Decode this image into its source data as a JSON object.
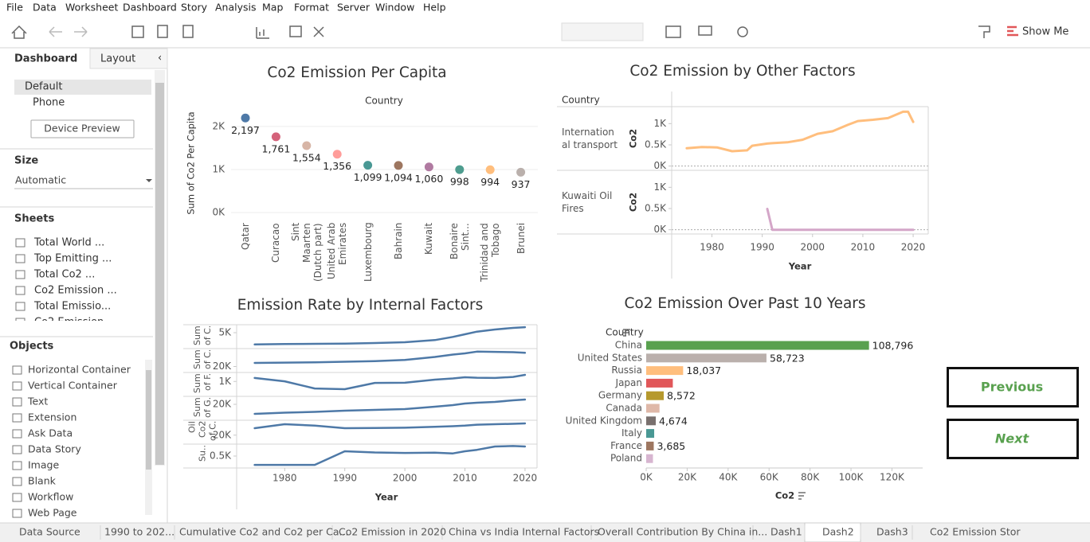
{
  "menu": [
    "File",
    "Data",
    "Worksheet",
    "Dashboard",
    "Story",
    "Analysis",
    "Map",
    "Format",
    "Server",
    "Window",
    "Help"
  ],
  "toolbar": {
    "show_me": "Show Me"
  },
  "sidebar": {
    "tabs": [
      "Dashboard",
      "Layout"
    ],
    "devices": [
      "Default",
      "Phone"
    ],
    "device_preview": "Device Preview",
    "size_title": "Size",
    "size_value": "Automatic",
    "sheets_title": "Sheets",
    "sheets": [
      "Total World ...",
      "Top Emitting ...",
      "Total Co2 ...",
      "Co2 Emission ...",
      "Total Emissio...",
      "Co2 Emission"
    ],
    "objects_title": "Objects",
    "objects": [
      "Horizontal Container",
      "Vertical Container",
      "Text",
      "Extension",
      "Ask Data",
      "Data Story",
      "Image",
      "Blank",
      "Workflow",
      "Web Page"
    ]
  },
  "chart_data": [
    {
      "type": "dot",
      "title": "Co2 Emission Per Capita",
      "header": "Country",
      "y_label": "Sum of Co2 Per Capita",
      "categories": [
        "Qatar",
        "Curacao",
        "Sint Maarten (Dutch part)",
        "United Arab Emirates",
        "Luxembourg",
        "Bahrain",
        "Kuwait",
        "Bonaire Sint...",
        "Trinidad and Tobago",
        "Brunei"
      ],
      "values": [
        2197,
        1761,
        1554,
        1356,
        1099,
        1094,
        1060,
        998,
        994,
        937
      ],
      "value_labels": [
        "2,197",
        "1,761",
        "1,554",
        "1,356",
        "1,099",
        "1,094",
        "1,060",
        "998",
        "994",
        "937"
      ],
      "colors": [
        "#4e79a7",
        "#d4627a",
        "#d7b5a6",
        "#ff9d9a",
        "#499894",
        "#9d7660",
        "#b07aa1",
        "#4e9d8f",
        "#ffbe7d",
        "#bab0ac"
      ],
      "ylim": [
        0,
        2350
      ],
      "yticks": [
        {
          "value": 0,
          "label": "0K"
        },
        {
          "value": 1000,
          "label": "1K"
        },
        {
          "value": 2000,
          "label": "2K"
        }
      ],
      "grid": true
    },
    {
      "type": "line",
      "title": "Co2 Emission by Other Factors",
      "row_header": "Country",
      "y_label": "Co2",
      "x_label": "Year",
      "x": [
        1975,
        1978,
        1981,
        1984,
        1987,
        1988,
        1991,
        1992,
        1995,
        1998,
        2001,
        2004,
        2007,
        2009,
        2012,
        2015,
        2018,
        2019,
        2020
      ],
      "xlim": [
        1972,
        2023
      ],
      "xticks": [
        1980,
        1990,
        2000,
        2010,
        2020
      ],
      "ylim": [
        -100,
        1400
      ],
      "yticks": [
        {
          "value": 0,
          "label": "0K"
        },
        {
          "value": 500,
          "label": "0.5K"
        },
        {
          "value": 1000,
          "label": "1K"
        }
      ],
      "series": [
        {
          "name": "International transport",
          "color": "#ffbe7d",
          "values": [
            420,
            450,
            440,
            350,
            370,
            480,
            530,
            540,
            560,
            620,
            760,
            820,
            970,
            1060,
            1090,
            1130,
            1280,
            1280,
            1040
          ]
        },
        {
          "name": "Kuwaiti Oil Fires",
          "color": "#d4a6c8",
          "values": [
            null,
            null,
            null,
            null,
            null,
            null,
            490,
            0,
            0,
            0,
            0,
            0,
            0,
            0,
            0,
            0,
            0,
            0,
            0
          ]
        }
      ]
    },
    {
      "type": "line",
      "title": "Emission Rate by Internal Factors",
      "x_label": "Year",
      "x": [
        1975,
        1980,
        1985,
        1990,
        1995,
        2000,
        2005,
        2008,
        2010,
        2012,
        2015,
        2018,
        2020
      ],
      "xlim": [
        1972,
        2022
      ],
      "xticks": [
        1980,
        1990,
        2000,
        2010,
        2020
      ],
      "series": [
        {
          "name": "Sum of C.",
          "color": "#4e79a7",
          "ylim": [
            2000,
            6500
          ],
          "yticks": [
            {
              "value": 5000,
              "label": "5K"
            }
          ],
          "values": [
            2780,
            2850,
            2900,
            2950,
            3050,
            3200,
            3600,
            4200,
            4700,
            5200,
            5600,
            5900,
            6030
          ]
        },
        {
          "name": "Sum of C.",
          "color": "#4e79a7",
          "ylim": [
            15000,
            35000
          ],
          "yticks": [
            {
              "value": 20000,
              "label": "20K"
            }
          ],
          "values": [
            23000,
            23300,
            23500,
            24000,
            24500,
            25500,
            28000,
            30000,
            31000,
            32500,
            32300,
            32000,
            31500
          ]
        },
        {
          "name": "Sum of F.",
          "color": "#4e79a7",
          "ylim": [
            0,
            1600
          ],
          "yticks": [
            {
              "value": 1000,
              "label": "1K"
            }
          ],
          "values": [
            1230,
            1010,
            530,
            480,
            900,
            910,
            1120,
            1200,
            1280,
            1250,
            1230,
            1300,
            1440
          ]
        },
        {
          "name": "Sum of G.",
          "color": "#4e79a7",
          "ylim": [
            0,
            30000
          ],
          "yticks": [
            {
              "value": 20000,
              "label": "20K"
            }
          ],
          "values": [
            8000,
            9500,
            10500,
            12000,
            13000,
            14000,
            17000,
            19000,
            21000,
            22000,
            23000,
            25000,
            26000
          ]
        },
        {
          "name": "Oil Co2 of C.",
          "color": "#4e79a7",
          "ylim": [
            5000,
            45000
          ],
          "yticks": [
            {
              "value": 20000,
              "label": "20K"
            }
          ],
          "values": [
            31700,
            38300,
            36000,
            31700,
            32000,
            32500,
            34000,
            35000,
            36000,
            37500,
            38300,
            39000,
            39700
          ]
        },
        {
          "name": "Su..",
          "color": "#4e79a7",
          "ylim": [
            0,
            1000
          ],
          "yticks": [
            {
              "value": 500,
              "label": "0.5K"
            }
          ],
          "values": [
            130,
            130,
            130,
            700,
            650,
            630,
            640,
            610,
            700,
            760,
            900,
            920,
            900
          ]
        }
      ]
    },
    {
      "type": "bar",
      "title": "Co2 Emission Over Past 10 Years",
      "header": "Country",
      "x_label": "Co2",
      "categories": [
        "China",
        "United States",
        "Russia",
        "Japan",
        "Germany",
        "Canada",
        "United Kingdom",
        "Italy",
        "France",
        "Poland"
      ],
      "values": [
        108796,
        58723,
        18037,
        13000,
        8572,
        6500,
        4674,
        3900,
        3685,
        3300
      ],
      "value_labels": [
        "108,796",
        "58,723",
        "18,037",
        null,
        "8,572",
        null,
        "4,674",
        null,
        "3,685",
        null
      ],
      "colors": [
        "#59a14f",
        "#bab0ac",
        "#ffbe7d",
        "#e15759",
        "#b6992d",
        "#dfb8a8",
        "#79706e",
        "#499894",
        "#9d7660",
        "#d7b5d0"
      ],
      "xlim": [
        0,
        135000
      ],
      "xticks": [
        {
          "value": 0,
          "label": "0K"
        },
        {
          "value": 20000,
          "label": "20K"
        },
        {
          "value": 40000,
          "label": "40K"
        },
        {
          "value": 60000,
          "label": "60K"
        },
        {
          "value": 80000,
          "label": "80K"
        },
        {
          "value": 100000,
          "label": "100K"
        },
        {
          "value": 120000,
          "label": "120K"
        }
      ]
    }
  ],
  "buttons": [
    "Previous",
    "Next"
  ],
  "tabs": [
    "Data Source",
    "1990 to 202...",
    "Cumulative Co2 and Co2 per Ca...",
    "Co2 Emission in 2020",
    "China vs India Internal Factors",
    "Overall Contribution  By China in...",
    "Dash1",
    "Dash2",
    "Dash3",
    "Co2 Emission Stor"
  ]
}
